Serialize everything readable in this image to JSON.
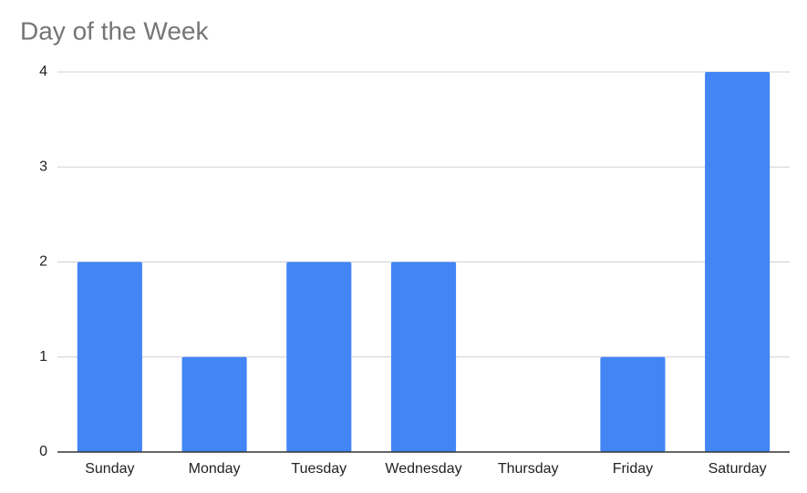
{
  "chart_data": {
    "type": "bar",
    "title": "Day of the Week",
    "categories": [
      "Sunday",
      "Monday",
      "Tuesday",
      "Wednesday",
      "Thursday",
      "Friday",
      "Saturday"
    ],
    "values": [
      2,
      1,
      2,
      2,
      0,
      1,
      4
    ],
    "color": "#4285f4",
    "ylim": [
      0,
      4
    ],
    "yticks": [
      0,
      1,
      2,
      3,
      4
    ],
    "grid": true
  }
}
